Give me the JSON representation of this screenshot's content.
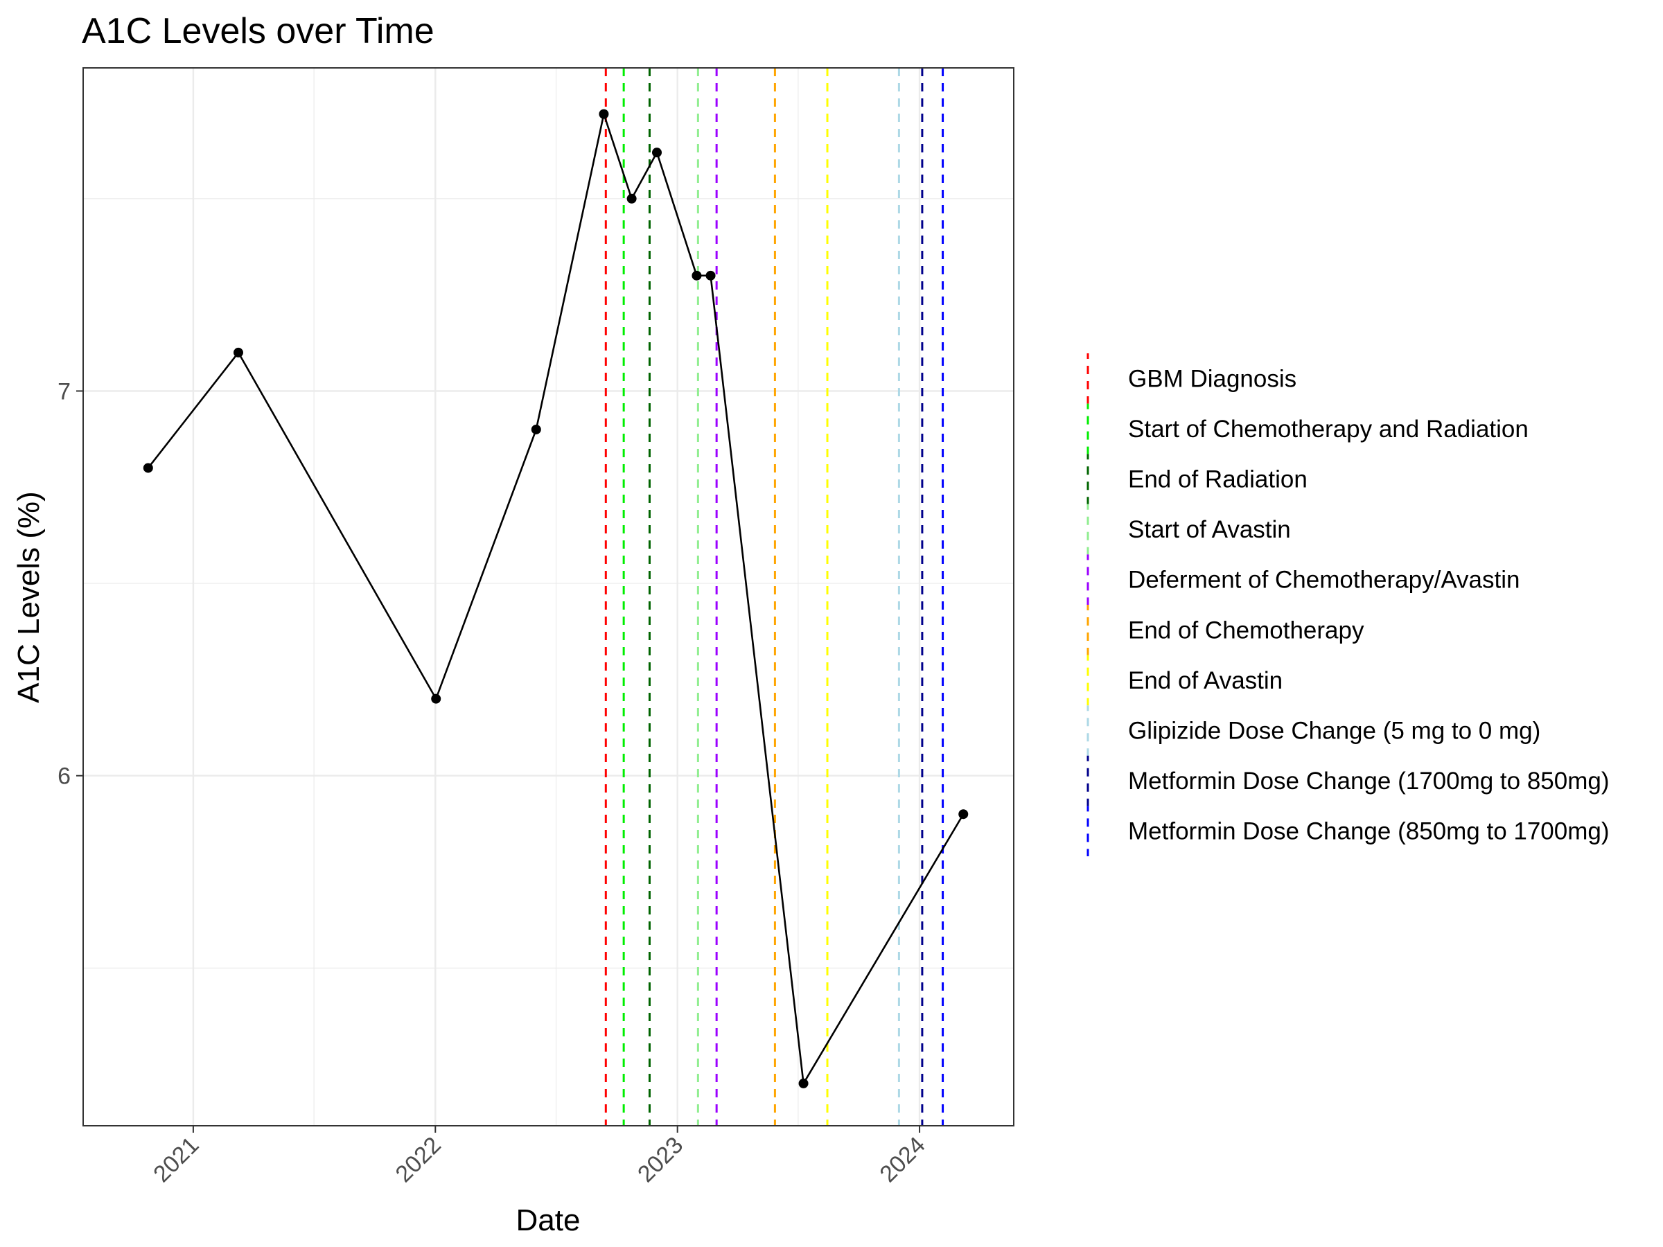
{
  "chart_data": {
    "type": "line",
    "title": "A1C Levels over Time",
    "xlabel": "Date",
    "ylabel": "A1C Levels (%)",
    "xlim": [
      "2020-07-19",
      "2024-05-22"
    ],
    "ylim": [
      5.09,
      7.84
    ],
    "x_ticks": [
      "2021",
      "2022",
      "2023",
      "2024"
    ],
    "y_ticks": [
      6,
      7
    ],
    "grid": true,
    "legend_position": "right",
    "series": [
      {
        "color": "#000000",
        "points": [
          {
            "x": "2020-10-25",
            "y": 6.8
          },
          {
            "x": "2021-03-10",
            "y": 7.1
          },
          {
            "x": "2022-01-02",
            "y": 6.2
          },
          {
            "x": "2022-06-02",
            "y": 6.9
          },
          {
            "x": "2022-09-12",
            "y": 7.72
          },
          {
            "x": "2022-10-24",
            "y": 7.5
          },
          {
            "x": "2022-12-01",
            "y": 7.62
          },
          {
            "x": "2023-01-30",
            "y": 7.3
          },
          {
            "x": "2023-02-20",
            "y": 7.3
          },
          {
            "x": "2023-07-10",
            "y": 5.2
          },
          {
            "x": "2024-03-07",
            "y": 5.9
          }
        ]
      }
    ],
    "events": [
      {
        "label": "GBM Diagnosis",
        "date": "2022-09-15",
        "color": "#ff0000"
      },
      {
        "label": "Start of Chemotherapy and Radiation",
        "date": "2022-10-12",
        "color": "#00ee00"
      },
      {
        "label": "End of Radiation",
        "date": "2022-11-20",
        "color": "#006400"
      },
      {
        "label": "Start of Avastin",
        "date": "2023-02-01",
        "color": "#90ee90"
      },
      {
        "label": "Deferment of Chemotherapy/Avastin",
        "date": "2023-03-01",
        "color": "#9b00ff"
      },
      {
        "label": "End of Chemotherapy",
        "date": "2023-05-28",
        "color": "#ffa500"
      },
      {
        "label": "End of Avastin",
        "date": "2023-08-15",
        "color": "#ffff00"
      },
      {
        "label": "Glipizide Dose Change (5 mg to 0 mg)",
        "date": "2023-12-01",
        "color": "#add8e6"
      },
      {
        "label": "Metformin Dose Change (1700mg to 850mg)",
        "date": "2024-01-05",
        "color": "#00008b"
      },
      {
        "label": "Metformin Dose Change (850mg to 1700mg)",
        "date": "2024-02-05",
        "color": "#0000ff"
      }
    ]
  }
}
